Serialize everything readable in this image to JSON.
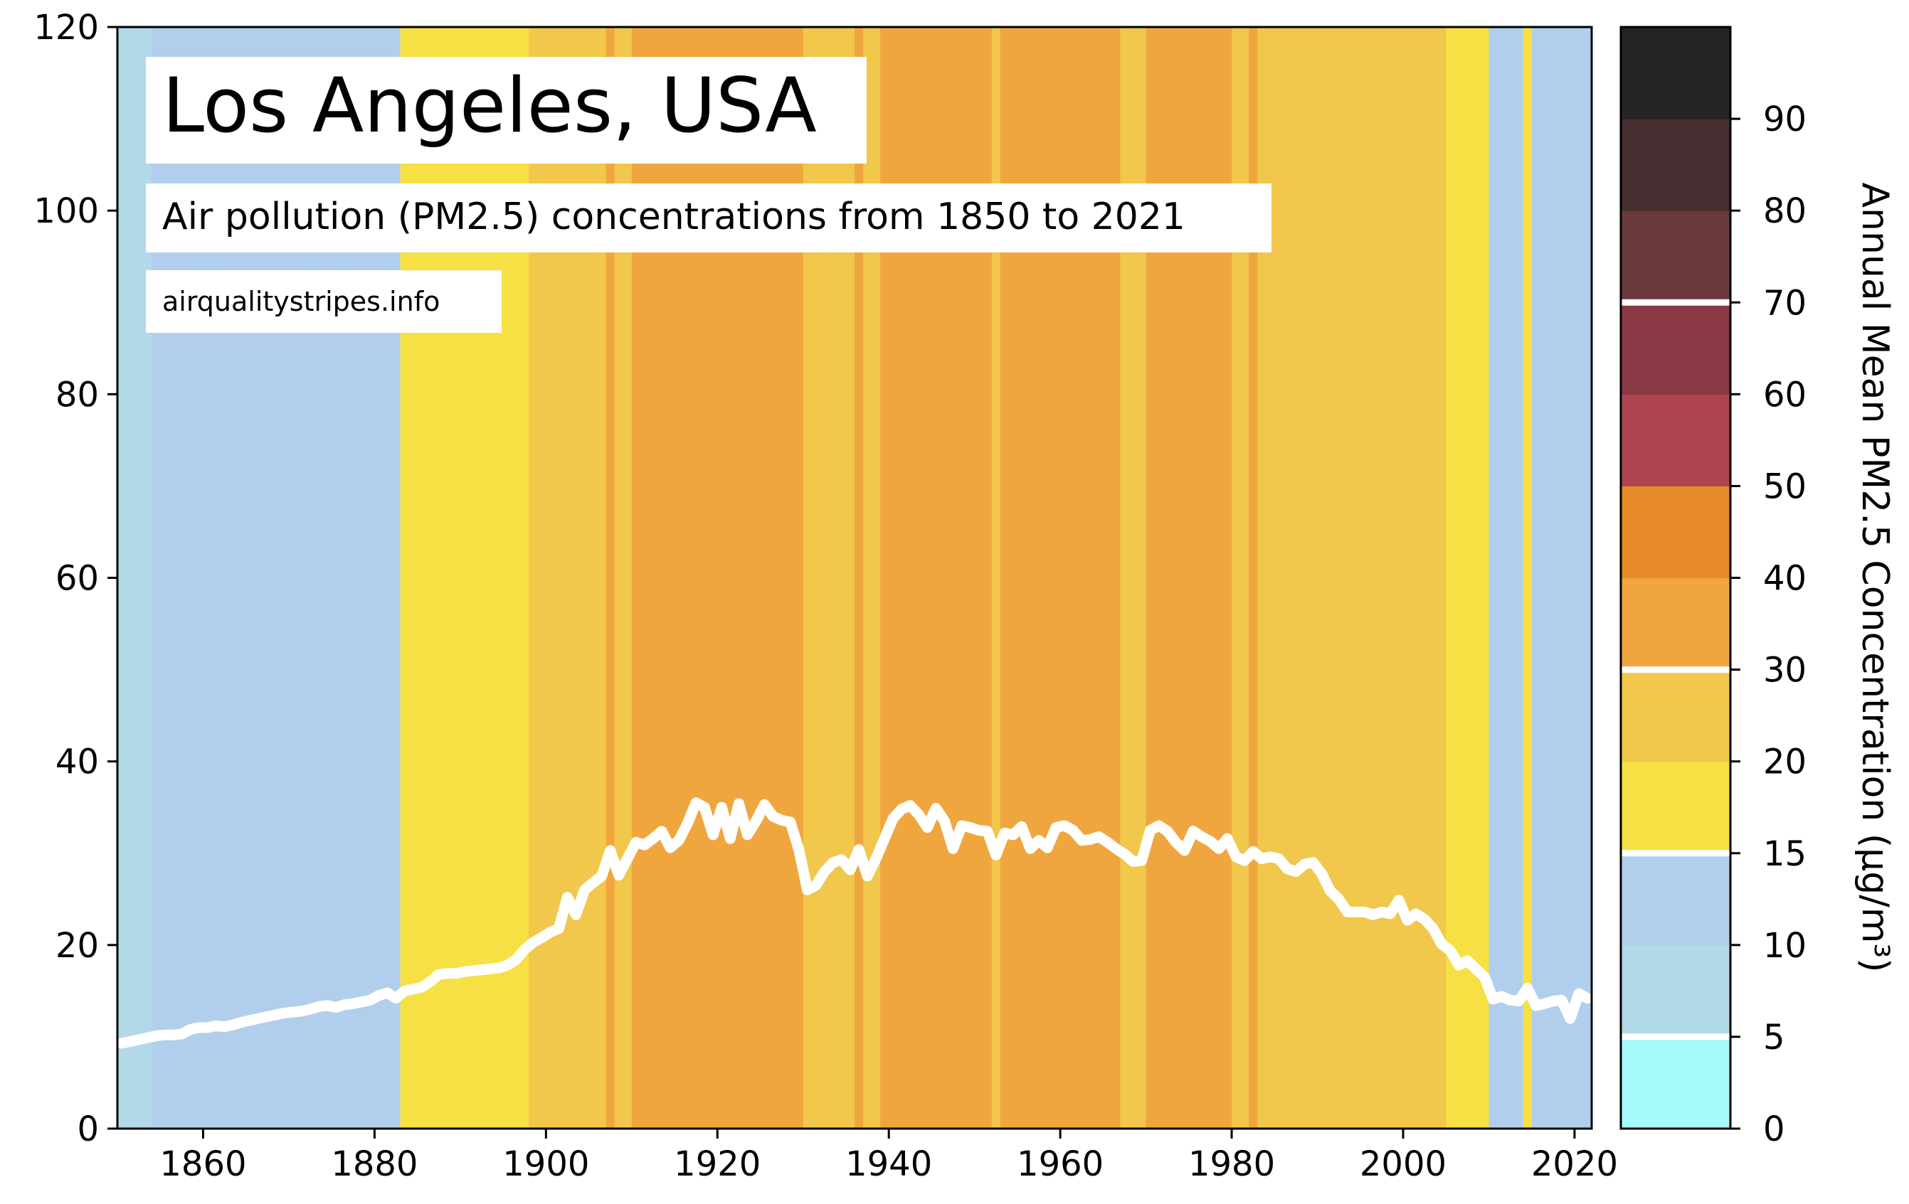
{
  "chart_data": {
    "type": "line",
    "title": "Los Angeles, USA",
    "subtitle": "Air pollution (PM2.5) concentrations from 1850 to 2021",
    "source": "airqualitystripes.info",
    "xlim": [
      1850,
      2022
    ],
    "ylim": [
      0,
      120
    ],
    "x_ticks": [
      1860,
      1880,
      1900,
      1920,
      1940,
      1960,
      1980,
      2000,
      2020
    ],
    "y_ticks": [
      0,
      20,
      40,
      60,
      80,
      100,
      120
    ],
    "line_color": "#ffffff",
    "series": [
      {
        "x": [
          1850,
          1851,
          1852,
          1853,
          1854,
          1855,
          1856,
          1857,
          1858,
          1859,
          1860,
          1861,
          1862,
          1863,
          1864,
          1865,
          1866,
          1867,
          1868,
          1869,
          1870,
          1871,
          1872,
          1873,
          1874,
          1875,
          1876,
          1877,
          1878,
          1879,
          1880,
          1881,
          1882,
          1883,
          1884,
          1885,
          1886,
          1887,
          1888,
          1889,
          1890,
          1891,
          1892,
          1893,
          1894,
          1895,
          1896,
          1897,
          1898,
          1899,
          1900,
          1901,
          1902,
          1903,
          1904,
          1905,
          1906,
          1907,
          1908,
          1909,
          1910,
          1911,
          1912,
          1913,
          1914,
          1915,
          1916,
          1917,
          1918,
          1919,
          1920,
          1921,
          1922,
          1923,
          1924,
          1925,
          1926,
          1927,
          1928,
          1929,
          1930,
          1931,
          1932,
          1933,
          1934,
          1935,
          1936,
          1937,
          1938,
          1939,
          1940,
          1941,
          1942,
          1943,
          1944,
          1945,
          1946,
          1947,
          1948,
          1949,
          1950,
          1951,
          1952,
          1953,
          1954,
          1955,
          1956,
          1957,
          1958,
          1959,
          1960,
          1961,
          1962,
          1963,
          1964,
          1965,
          1966,
          1967,
          1968,
          1969,
          1970,
          1971,
          1972,
          1973,
          1974,
          1975,
          1976,
          1977,
          1978,
          1979,
          1980,
          1981,
          1982,
          1983,
          1984,
          1985,
          1986,
          1987,
          1988,
          1989,
          1990,
          1991,
          1992,
          1993,
          1994,
          1995,
          1996,
          1997,
          1998,
          1999,
          2000,
          2001,
          2002,
          2003,
          2004,
          2005,
          2006,
          2007,
          2008,
          2009,
          2010,
          2011,
          2012,
          2013,
          2014,
          2015,
          2016,
          2017,
          2018,
          2019,
          2020,
          2021
        ],
        "values": [
          9.3,
          9.5,
          9.7,
          9.9,
          10.1,
          10.2,
          10.2,
          10.3,
          10.8,
          11.0,
          11.0,
          11.2,
          11.1,
          11.3,
          11.6,
          11.8,
          12.0,
          12.2,
          12.4,
          12.6,
          12.7,
          12.8,
          13.0,
          13.3,
          13.4,
          13.2,
          13.5,
          13.6,
          13.8,
          14.0,
          14.5,
          14.8,
          14.2,
          15.0,
          15.2,
          15.4,
          16.0,
          16.8,
          16.9,
          16.9,
          17.1,
          17.2,
          17.3,
          17.4,
          17.5,
          17.8,
          18.4,
          19.5,
          20.3,
          20.8,
          21.4,
          21.8,
          25.2,
          23.3,
          26.0,
          26.8,
          27.5,
          30.3,
          27.6,
          29.4,
          31.2,
          30.9,
          31.6,
          32.4,
          30.6,
          31.4,
          33.2,
          35.5,
          35.0,
          32.0,
          35.0,
          31.6,
          35.4,
          32.0,
          33.5,
          35.3,
          34.0,
          33.6,
          33.4,
          30.4,
          26.0,
          26.5,
          28.0,
          29.0,
          29.3,
          28.2,
          30.4,
          27.5,
          29.4,
          31.6,
          33.8,
          34.8,
          35.2,
          34.2,
          32.8,
          34.9,
          33.5,
          30.5,
          33.0,
          32.8,
          32.5,
          32.4,
          29.8,
          32.2,
          32.0,
          32.9,
          30.5,
          31.4,
          30.6,
          32.8,
          33.0,
          32.5,
          31.4,
          31.5,
          31.8,
          31.2,
          30.5,
          29.9,
          29.1,
          29.2,
          32.5,
          33.0,
          32.4,
          31.2,
          30.3,
          32.4,
          31.8,
          31.3,
          30.5,
          31.6,
          29.6,
          29.2,
          30.2,
          29.4,
          29.6,
          29.4,
          28.3,
          28.0,
          28.8,
          29.0,
          27.8,
          25.9,
          25.0,
          23.6,
          23.6,
          23.6,
          23.3,
          23.6,
          23.4,
          24.9,
          22.7,
          23.4,
          22.8,
          21.8,
          20.1,
          19.4,
          17.8,
          18.3,
          17.4,
          16.5,
          14.1,
          14.4,
          14.0,
          13.9,
          15.3,
          13.4,
          13.6,
          13.9,
          14.0,
          12.0,
          14.7,
          14.2
        ]
      }
    ],
    "stripes_note_colors": {
      "0-5": "#a5fbfb",
      "5-10": "#b1d9e8",
      "10-15": "#b1cfec",
      "15-20": "#f6e044",
      "20-30": "#f1c74c",
      "30-40": "#f0a63f",
      "40-50": "#e68a27",
      "50-60": "#ae4450",
      "60-70": "#893844",
      "70-80": "#6a393b",
      "80-90": "#462e30",
      "90-100": "#242424"
    },
    "colorbar": {
      "label": "Annual Mean PM2.5 Concentration (µg/m³)",
      "ticks": [
        "0",
        "5",
        "10",
        "15",
        "20",
        "30",
        "40",
        "50",
        "60",
        "70",
        "80",
        "90"
      ],
      "bands": [
        {
          "range": "0-5",
          "color": "#a5fbfb"
        },
        {
          "range": "5-10",
          "color": "#b1d9e8"
        },
        {
          "range": "10-15",
          "color": "#b1cfec"
        },
        {
          "range": "15-20",
          "color": "#f6e044"
        },
        {
          "range": "20-30",
          "color": "#f1c74c"
        },
        {
          "range": "30-40",
          "color": "#f0a63f"
        },
        {
          "range": "40-50",
          "color": "#e68a27"
        },
        {
          "range": "50-60",
          "color": "#ae4450"
        },
        {
          "range": "60-70",
          "color": "#893844"
        },
        {
          "range": "70-80",
          "color": "#6a393b"
        },
        {
          "range": "80-90",
          "color": "#462e30"
        },
        {
          "range": "90-100",
          "color": "#242424"
        }
      ],
      "white_lines_at": [
        "5",
        "15",
        "30",
        "70"
      ]
    }
  }
}
